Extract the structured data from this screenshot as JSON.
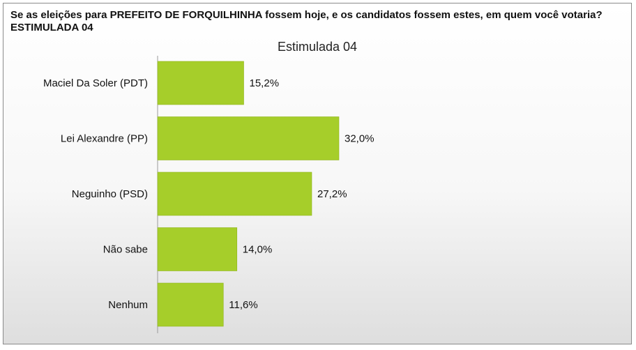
{
  "question": "Se as eleições para PREFEITO DE FORQUILHINHA fossem hoje, e os candidatos fossem estes, em quem você votaria? ESTIMULADA 04",
  "chart_data": {
    "type": "bar",
    "orientation": "horizontal",
    "title": "Estimulada 04",
    "xlabel": "",
    "ylabel": "",
    "categories": [
      "Maciel Da Soler (PDT)",
      "Lei Alexandre (PP)",
      "Neguinho (PSD)",
      "Não sabe",
      "Nenhum"
    ],
    "values": [
      15.2,
      32.0,
      27.2,
      14.0,
      11.6
    ],
    "value_labels": [
      "15,2%",
      "32,0%",
      "27,2%",
      "14,0%",
      "11,6%"
    ],
    "unit": "%",
    "xlim": [
      0,
      35
    ],
    "grid": false,
    "legend": "none",
    "bar_color": "#a6ce2a",
    "bar_stroke": "#8fb41c"
  }
}
